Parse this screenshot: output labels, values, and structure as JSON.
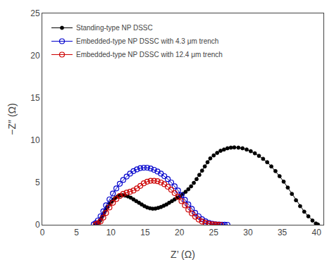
{
  "chart_data": {
    "type": "line",
    "xlabel": "Z’ (Ω)",
    "ylabel": "−Z″ (Ω)",
    "xlim": [
      0,
      41
    ],
    "ylim": [
      0,
      25
    ],
    "xticks": [
      0,
      5,
      10,
      15,
      20,
      25,
      30,
      35,
      40
    ],
    "yticks": [
      0,
      5,
      10,
      15,
      20,
      25
    ],
    "grid": false,
    "legend": "upper left",
    "series": [
      {
        "name": "Standing-type NP DSSC",
        "color": "#000000",
        "marker": "circle",
        "line_style": "solid",
        "x": [
          7.8,
          8.0,
          8.2,
          8.4,
          8.6,
          8.8,
          9.0,
          9.2,
          9.5,
          9.8,
          10.1,
          10.4,
          10.7,
          11.0,
          11.3,
          11.7,
          12.1,
          12.5,
          12.9,
          13.3,
          13.7,
          14.1,
          14.5,
          14.9,
          15.3,
          15.7,
          16.1,
          16.5,
          16.9,
          17.3,
          17.7,
          18.1,
          18.5,
          18.9,
          19.3,
          19.7,
          20.1,
          20.5,
          20.9,
          21.3,
          21.7,
          22.1,
          22.5,
          22.9,
          23.3,
          23.7,
          24.1,
          24.5,
          25.0,
          25.5,
          26.0,
          26.5,
          27.0,
          27.5,
          28.0,
          28.6,
          29.2,
          29.8,
          30.4,
          31.0,
          31.6,
          32.2,
          32.8,
          33.4,
          34.0,
          34.6,
          35.2,
          35.8,
          36.4,
          37.0,
          37.6,
          38.2,
          38.8,
          39.4,
          39.9,
          40.2
        ],
        "values": [
          0.05,
          0.12,
          0.25,
          0.45,
          0.75,
          1.05,
          1.4,
          1.75,
          2.1,
          2.45,
          2.75,
          3.0,
          3.2,
          3.35,
          3.45,
          3.5,
          3.45,
          3.35,
          3.2,
          3.0,
          2.8,
          2.6,
          2.4,
          2.2,
          2.05,
          1.95,
          1.9,
          1.92,
          2.0,
          2.1,
          2.25,
          2.4,
          2.6,
          2.8,
          3.0,
          3.2,
          3.4,
          3.65,
          3.9,
          4.2,
          4.55,
          4.95,
          5.4,
          5.9,
          6.4,
          6.9,
          7.4,
          7.85,
          8.2,
          8.5,
          8.75,
          8.9,
          9.05,
          9.12,
          9.15,
          9.12,
          9.05,
          8.9,
          8.7,
          8.45,
          8.15,
          7.8,
          7.4,
          6.9,
          6.35,
          5.75,
          5.1,
          4.4,
          3.65,
          2.9,
          2.2,
          1.55,
          1.0,
          0.5,
          0.15,
          0.03
        ]
      },
      {
        "name": "Embedded-type NP DSSC with 4.3 μm trench",
        "color": "#0000cc",
        "marker": "circle-open",
        "line_style": "solid",
        "x": [
          7.5,
          7.8,
          8.1,
          8.5,
          8.9,
          9.3,
          9.8,
          10.3,
          10.8,
          11.3,
          11.8,
          12.3,
          12.8,
          13.3,
          13.8,
          14.3,
          14.8,
          15.3,
          15.8,
          16.3,
          16.8,
          17.3,
          17.8,
          18.3,
          18.8,
          19.3,
          19.8,
          20.3,
          20.8,
          21.3,
          21.8,
          22.3,
          22.8,
          23.3,
          23.8,
          24.3,
          24.8,
          25.3,
          25.8,
          26.2,
          26.6,
          27.0
        ],
        "values": [
          0.05,
          0.2,
          0.5,
          1.0,
          1.6,
          2.3,
          3.0,
          3.7,
          4.3,
          4.85,
          5.3,
          5.7,
          6.05,
          6.35,
          6.55,
          6.7,
          6.75,
          6.75,
          6.65,
          6.5,
          6.3,
          6.05,
          5.75,
          5.4,
          5.0,
          4.55,
          4.05,
          3.5,
          2.95,
          2.4,
          1.88,
          1.4,
          1.0,
          0.65,
          0.4,
          0.22,
          0.12,
          0.06,
          0.03,
          0.01,
          0.005,
          0.0
        ]
      },
      {
        "name": "Embedded-type NP DSSC with 12.4 μm trench",
        "color": "#cc0000",
        "marker": "circle-open",
        "line_style": "solid",
        "x": [
          7.8,
          8.1,
          8.5,
          8.9,
          9.3,
          9.8,
          10.3,
          10.8,
          11.3,
          11.8,
          12.3,
          12.8,
          13.3,
          13.8,
          14.3,
          14.8,
          15.3,
          15.8,
          16.3,
          16.8,
          17.3,
          17.8,
          18.3,
          18.8,
          19.3,
          19.8,
          20.3,
          20.8,
          21.3,
          21.8,
          22.3,
          22.8,
          23.3,
          23.8,
          24.3,
          24.8,
          25.2,
          25.6,
          26.0
        ],
        "values": [
          0.05,
          0.15,
          0.4,
          0.85,
          1.4,
          2.05,
          2.6,
          3.05,
          3.4,
          3.65,
          3.8,
          3.9,
          4.05,
          4.3,
          4.6,
          4.9,
          5.1,
          5.2,
          5.2,
          5.15,
          5.0,
          4.8,
          4.5,
          4.15,
          3.75,
          3.3,
          2.8,
          2.3,
          1.8,
          1.35,
          0.95,
          0.62,
          0.38,
          0.22,
          0.12,
          0.06,
          0.03,
          0.01,
          0.0
        ]
      }
    ]
  }
}
